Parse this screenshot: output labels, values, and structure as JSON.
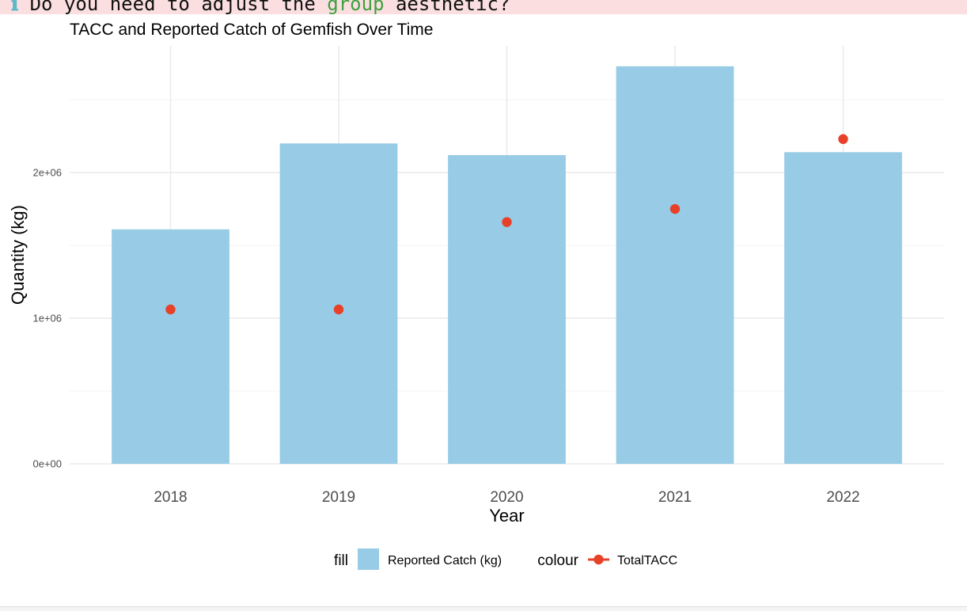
{
  "console_message": {
    "icon": "info-icon",
    "prefix": "Do you need to adjust the ",
    "code": "group",
    "suffix": " aesthetic?"
  },
  "chart_data": {
    "type": "bar",
    "title": "TACC and Reported Catch of Gemfish Over Time",
    "xlabel": "Year",
    "ylabel": "Quantity (kg)",
    "categories": [
      "2018",
      "2019",
      "2020",
      "2021",
      "2022"
    ],
    "series": [
      {
        "name": "Reported Catch (kg)",
        "kind": "bar",
        "color": "#97cbe6",
        "values": [
          1610000,
          2200000,
          2120000,
          2730000,
          2140000
        ]
      },
      {
        "name": "TotalTACC",
        "kind": "point",
        "color": "#e8412a",
        "values": [
          1060000,
          1060000,
          1660000,
          1750000,
          2230000
        ]
      }
    ],
    "ylim": [
      0,
      2870000
    ],
    "yticks": [
      0,
      1000000,
      2000000
    ],
    "ytick_labels": [
      "0e+00",
      "1e+06",
      "2e+06"
    ],
    "grid": true,
    "legend": {
      "position": "bottom",
      "fill_title": "fill",
      "fill_label": "Reported Catch (kg)",
      "colour_title": "colour",
      "colour_label": "TotalTACC"
    }
  }
}
